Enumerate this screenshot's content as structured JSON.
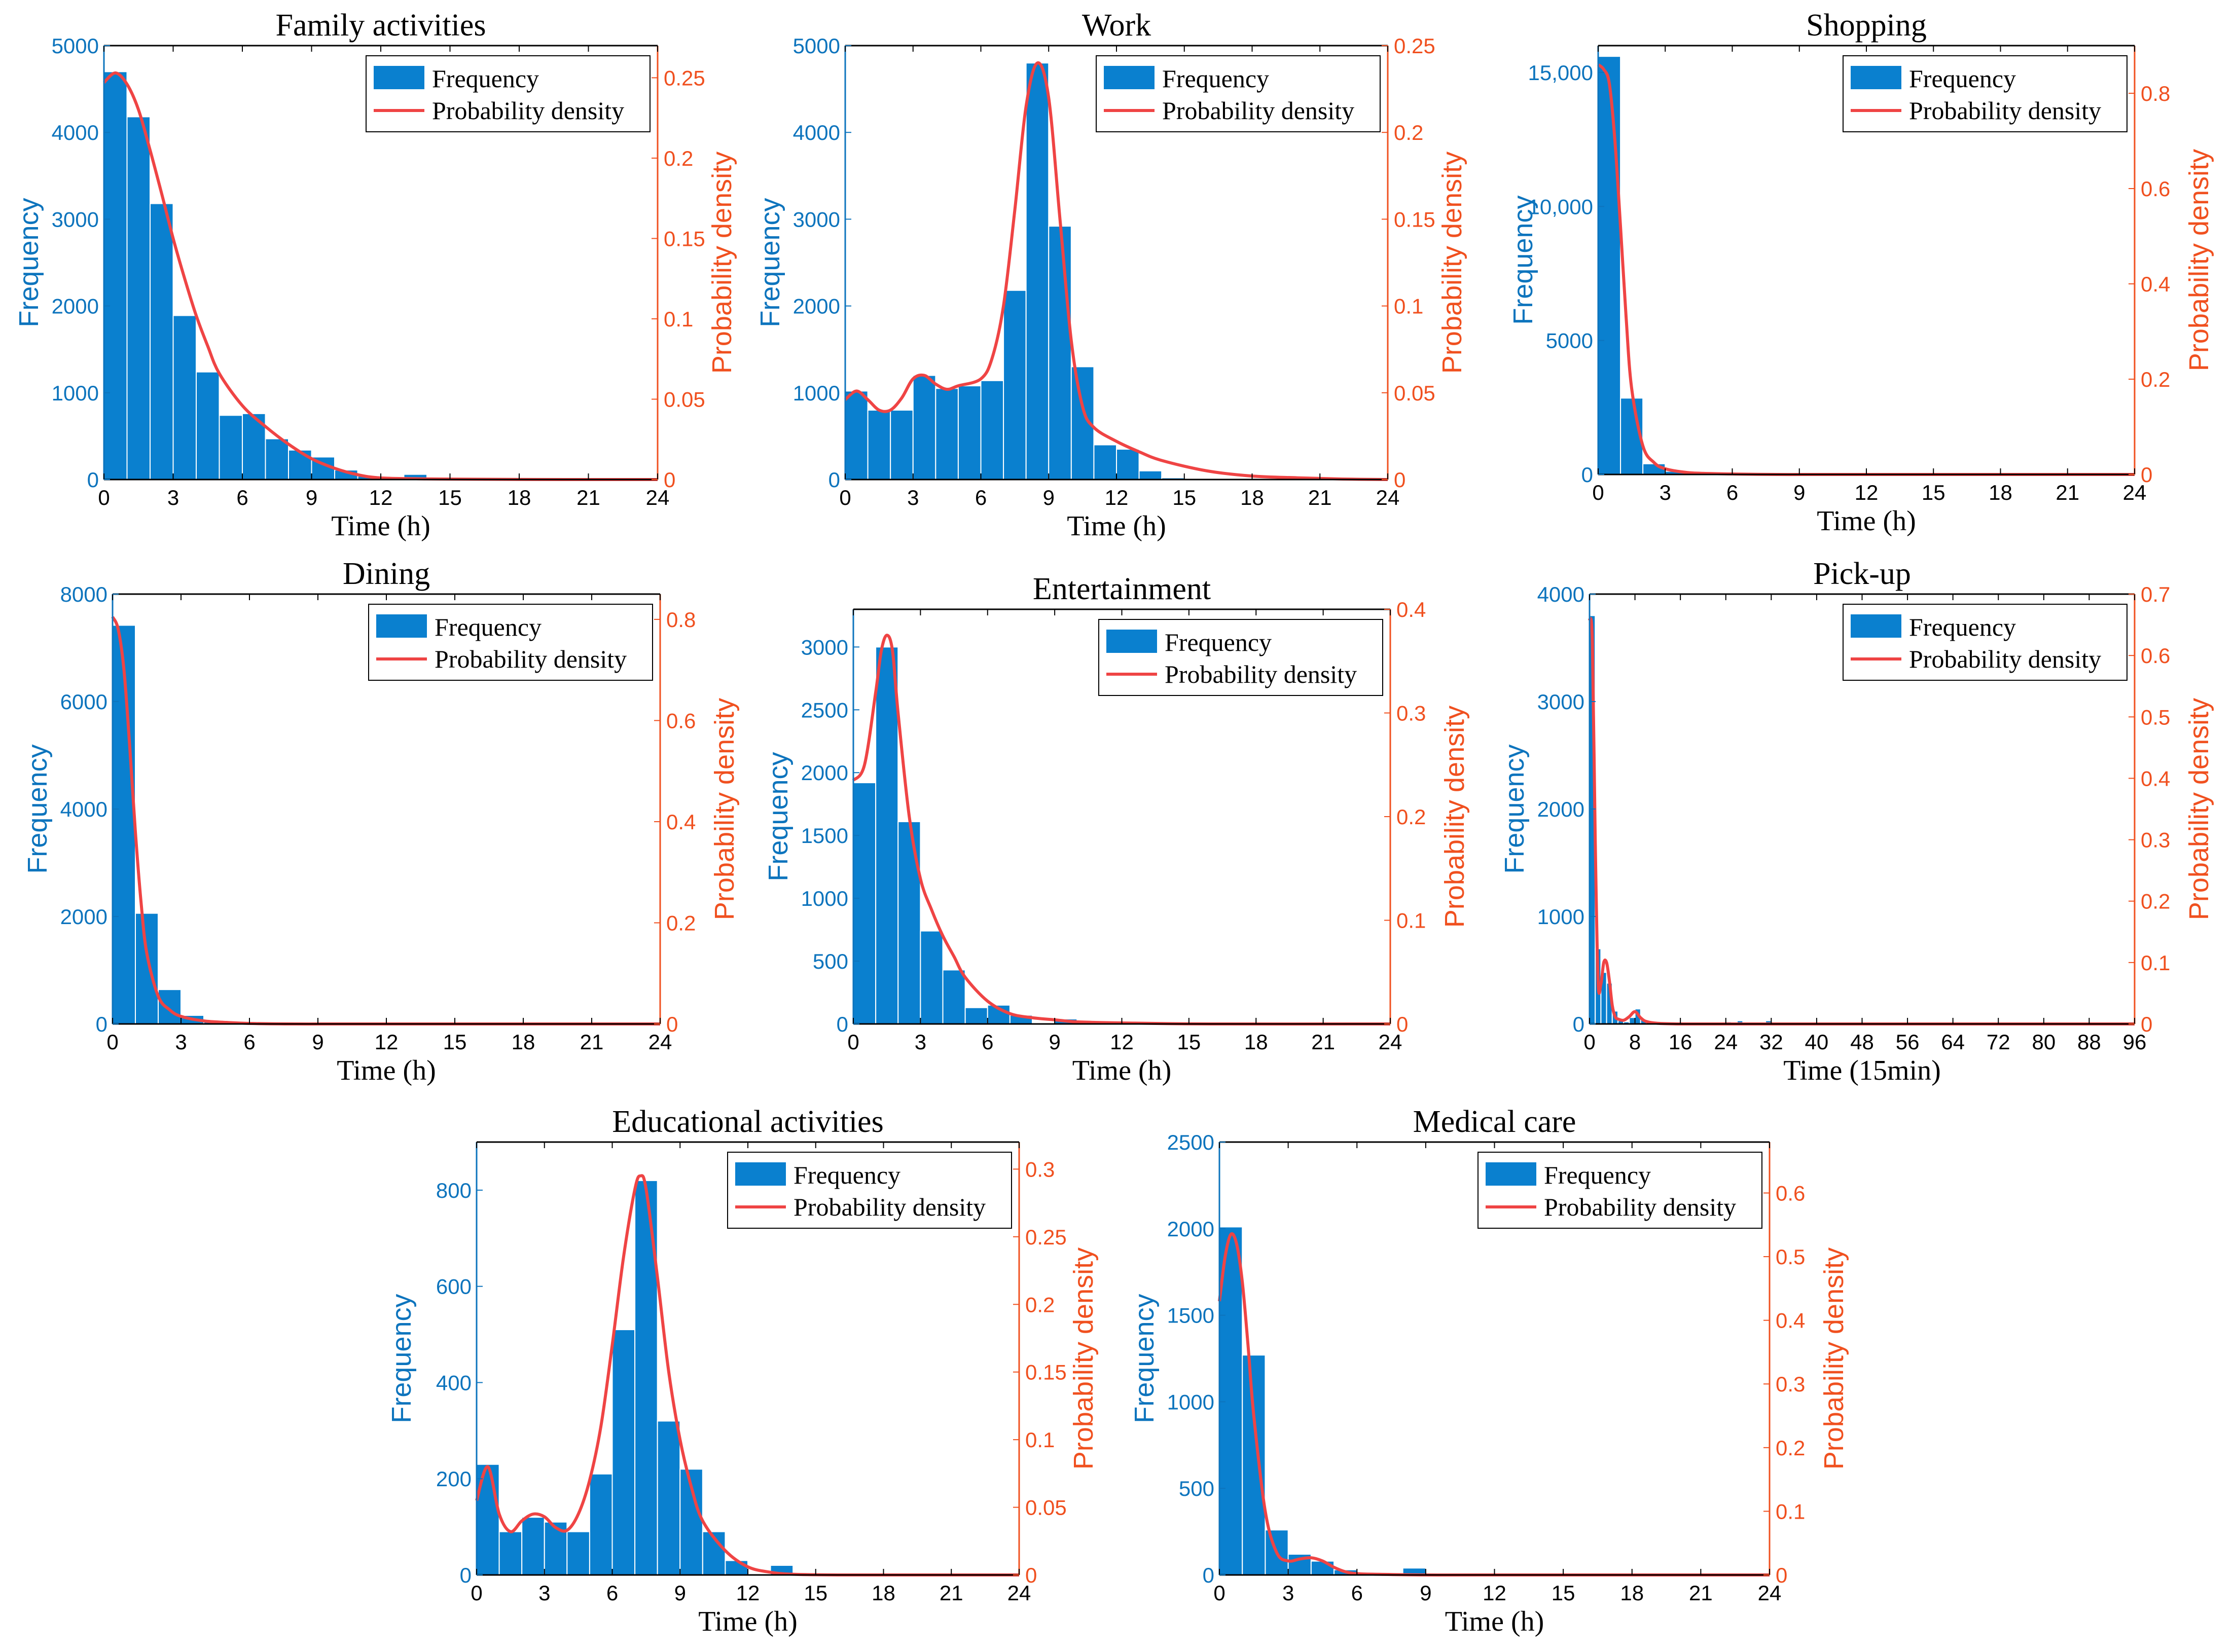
{
  "colors": {
    "bar": "#0a80cf",
    "density": "#ef4444",
    "left_axis": "#0d74bd",
    "right_axis": "#f0501f",
    "axis": "#000000"
  },
  "chart_data": [
    {
      "type": "bar",
      "title": "Family activities",
      "xlabel": "Time (h)",
      "ylabel": "Frequency",
      "ylabel_right": "Probability density",
      "xlim": [
        0,
        24
      ],
      "xticks": [
        "0",
        "3",
        "6",
        "9",
        "12",
        "15",
        "18",
        "21",
        "24"
      ],
      "ylim": [
        0,
        5000
      ],
      "yticks": [
        "0",
        "1000",
        "2000",
        "3000",
        "4000",
        "5000"
      ],
      "ylim_right": [
        0,
        0.27
      ],
      "yticks_right": [
        "0",
        "0.05",
        "0.1",
        "0.15",
        "0.2",
        "0.25"
      ],
      "bin_width": 1,
      "values": [
        4700,
        4180,
        3180,
        1890,
        1240,
        740,
        760,
        470,
        340,
        260,
        110,
        40,
        10,
        60,
        5,
        0,
        0,
        0,
        0,
        0,
        0,
        0,
        0,
        0
      ],
      "density_x": [
        0,
        0.5,
        1,
        1.5,
        2,
        2.5,
        3,
        3.5,
        4,
        4.5,
        5,
        6,
        7,
        8,
        9,
        10,
        11,
        12,
        14,
        16,
        20,
        24
      ],
      "density_y": [
        0.247,
        0.253,
        0.246,
        0.23,
        0.205,
        0.178,
        0.15,
        0.125,
        0.102,
        0.083,
        0.066,
        0.046,
        0.033,
        0.022,
        0.013,
        0.007,
        0.003,
        0.001,
        0.0004,
        0.0002,
        0,
        0
      ],
      "legend": [
        "Frequency",
        "Probability density"
      ]
    },
    {
      "type": "bar",
      "title": "Work",
      "xlabel": "Time  (h)",
      "ylabel": "Frequency",
      "ylabel_right": "Probability density",
      "xlim": [
        0,
        24
      ],
      "xticks": [
        "0",
        "3",
        "6",
        "9",
        "12",
        "15",
        "18",
        "21",
        "24"
      ],
      "ylim": [
        0,
        5000
      ],
      "yticks": [
        "0",
        "1000",
        "2000",
        "3000",
        "4000",
        "5000"
      ],
      "ylim_right": [
        0,
        0.25
      ],
      "yticks_right": [
        "0",
        "0.05",
        "0.1",
        "0.15",
        "0.2",
        "0.25"
      ],
      "bin_width": 1,
      "values": [
        1020,
        800,
        800,
        1200,
        1050,
        1080,
        1140,
        2180,
        4800,
        2920,
        1300,
        400,
        350,
        100,
        20,
        10,
        0,
        0,
        0,
        0,
        0,
        0,
        0,
        0
      ],
      "density_x": [
        0,
        0.5,
        1,
        1.5,
        2,
        2.5,
        3,
        3.5,
        4,
        4.5,
        5,
        6,
        6.5,
        7,
        7.5,
        8,
        8.5,
        9,
        9.5,
        10,
        10.5,
        11,
        12,
        13,
        14,
        16,
        18,
        20,
        22,
        24
      ],
      "density_y": [
        0.046,
        0.051,
        0.046,
        0.04,
        0.04,
        0.047,
        0.058,
        0.06,
        0.055,
        0.052,
        0.054,
        0.058,
        0.07,
        0.1,
        0.155,
        0.215,
        0.24,
        0.22,
        0.15,
        0.08,
        0.042,
        0.03,
        0.022,
        0.016,
        0.011,
        0.005,
        0.002,
        0.001,
        0.0003,
        0
      ],
      "legend": [
        "Frequency",
        "Probability density"
      ]
    },
    {
      "type": "bar",
      "title": "Shopping",
      "xlabel": "Time  (h)",
      "ylabel": "Frequency",
      "ylabel_right": "Probability density",
      "xlim": [
        0,
        24
      ],
      "xticks": [
        "0",
        "3",
        "6",
        "9",
        "12",
        "15",
        "18",
        "21",
        "24"
      ],
      "ylim": [
        0,
        16000
      ],
      "yticks": [
        "0",
        "5000",
        "10,000",
        "15,000"
      ],
      "ylim_right": [
        0,
        0.9
      ],
      "yticks_right": [
        "0",
        "0.2",
        "0.4",
        "0.6",
        "0.8"
      ],
      "bin_width": 1,
      "values": [
        15600,
        2850,
        400,
        120,
        40,
        20,
        10,
        5,
        0,
        0,
        0,
        0,
        0,
        0,
        0,
        0,
        0,
        0,
        0,
        0,
        0,
        0,
        0,
        0
      ],
      "density_x": [
        0,
        0.25,
        0.5,
        0.75,
        1,
        1.25,
        1.5,
        2,
        2.5,
        3,
        4,
        5,
        6,
        8,
        12,
        24
      ],
      "density_y": [
        0.86,
        0.85,
        0.82,
        0.7,
        0.52,
        0.33,
        0.18,
        0.06,
        0.025,
        0.012,
        0.004,
        0.002,
        0.001,
        0,
        0,
        0
      ],
      "legend": [
        "Frequency",
        "Probability density"
      ]
    },
    {
      "type": "bar",
      "title": "Dining",
      "xlabel": "Time  (h)",
      "ylabel": "Frequency",
      "ylabel_right": "Probability density",
      "xlim": [
        0,
        24
      ],
      "xticks": [
        "0",
        "3",
        "6",
        "9",
        "12",
        "15",
        "18",
        "21",
        "24"
      ],
      "ylim": [
        0,
        8000
      ],
      "yticks": [
        "0",
        "2000",
        "4000",
        "6000",
        "8000"
      ],
      "ylim_right": [
        0,
        0.85
      ],
      "yticks_right": [
        "0",
        "0.2",
        "0.4",
        "0.6",
        "0.8"
      ],
      "bin_width": 1,
      "values": [
        7420,
        2060,
        640,
        160,
        60,
        20,
        10,
        5,
        0,
        0,
        0,
        0,
        0,
        0,
        0,
        0,
        0,
        0,
        0,
        0,
        0,
        0,
        0,
        0
      ],
      "density_x": [
        0,
        0.25,
        0.5,
        0.75,
        1,
        1.25,
        1.5,
        2,
        2.5,
        3,
        4,
        5,
        6,
        8,
        12,
        24
      ],
      "density_y": [
        0.805,
        0.78,
        0.7,
        0.55,
        0.38,
        0.24,
        0.14,
        0.055,
        0.028,
        0.015,
        0.006,
        0.003,
        0.001,
        0,
        0,
        0
      ],
      "legend": [
        "Frequency",
        "Probability density"
      ]
    },
    {
      "type": "bar",
      "title": "Entertainment",
      "xlabel": "Time  (h)",
      "ylabel": "Frequency",
      "ylabel_right": "Probability density",
      "xlim": [
        0,
        24
      ],
      "xticks": [
        "0",
        "3",
        "6",
        "9",
        "12",
        "15",
        "18",
        "21",
        "24"
      ],
      "ylim": [
        0,
        3300
      ],
      "yticks": [
        "0",
        "500",
        "1000",
        "1500",
        "2000",
        "2500",
        "3000"
      ],
      "ylim_right": [
        0,
        0.4
      ],
      "yticks_right": [
        "0",
        "0.1",
        "0.2",
        "0.3",
        "0.4"
      ],
      "bin_width": 1,
      "values": [
        1920,
        3000,
        1610,
        740,
        430,
        130,
        150,
        70,
        10,
        40,
        5,
        0,
        0,
        0,
        0,
        0,
        0,
        0,
        0,
        0,
        0,
        0,
        0,
        0
      ],
      "density_x": [
        0,
        0.5,
        1,
        1.25,
        1.5,
        1.75,
        2,
        2.5,
        3,
        3.5,
        4,
        4.5,
        5,
        6,
        7,
        8,
        9,
        10,
        12,
        16,
        24
      ],
      "density_y": [
        0.235,
        0.25,
        0.32,
        0.36,
        0.375,
        0.36,
        0.3,
        0.2,
        0.14,
        0.11,
        0.085,
        0.065,
        0.045,
        0.022,
        0.01,
        0.006,
        0.004,
        0.002,
        0.001,
        0,
        0
      ],
      "legend": [
        "Frequency",
        "Probability density"
      ]
    },
    {
      "type": "bar",
      "title": "Pick-up",
      "xlabel": "Time  (15min)",
      "ylabel": "Frequency",
      "ylabel_right": "Probability density",
      "xlim": [
        0,
        96
      ],
      "xticks": [
        "0",
        "8",
        "16",
        "24",
        "32",
        "40",
        "48",
        "56",
        "64",
        "72",
        "80",
        "88",
        "96"
      ],
      "ylim": [
        0,
        4000
      ],
      "yticks": [
        "0",
        "1000",
        "2000",
        "3000",
        "4000"
      ],
      "ylim_right": [
        0,
        0.7
      ],
      "yticks_right": [
        "0",
        "0.1",
        "0.2",
        "0.3",
        "0.4",
        "0.5",
        "0.6",
        "0.7"
      ],
      "bin_width": 1,
      "values": [
        3800,
        700,
        480,
        380,
        120,
        30,
        20,
        60,
        140,
        40,
        20,
        10,
        20,
        0,
        0,
        0,
        10,
        0,
        0,
        0,
        0,
        0,
        0,
        0,
        20,
        0,
        30,
        0,
        0,
        10,
        0,
        30
      ],
      "density_x": [
        0,
        0.5,
        1,
        1.5,
        2,
        2.5,
        3,
        3.5,
        4,
        4.5,
        5,
        6,
        7,
        8,
        9,
        10,
        12,
        16,
        24,
        32,
        96
      ],
      "density_y": [
        0.66,
        0.62,
        0.3,
        0.07,
        0.065,
        0.1,
        0.1,
        0.07,
        0.03,
        0.012,
        0.008,
        0.006,
        0.012,
        0.02,
        0.01,
        0.004,
        0.001,
        0,
        0,
        0,
        0
      ],
      "legend": [
        "Frequency",
        "Probability density"
      ]
    },
    {
      "type": "bar",
      "title": "Educational activities",
      "xlabel": "Time  (h)",
      "ylabel": "Frequency",
      "ylabel_right": "Probability density",
      "xlim": [
        0,
        24
      ],
      "xticks": [
        "0",
        "3",
        "6",
        "9",
        "12",
        "15",
        "18",
        "21",
        "24"
      ],
      "ylim": [
        0,
        900
      ],
      "yticks": [
        "0",
        "200",
        "400",
        "600",
        "800"
      ],
      "ylim_right": [
        0,
        0.32
      ],
      "yticks_right": [
        "0",
        "0.05",
        "0.1",
        "0.15",
        "0.2",
        "0.25",
        "0.3"
      ],
      "bin_width": 1,
      "values": [
        230,
        90,
        120,
        110,
        90,
        210,
        510,
        820,
        320,
        220,
        90,
        30,
        0,
        20,
        0,
        0,
        0,
        0,
        0,
        0,
        0,
        0,
        0,
        0
      ],
      "density_x": [
        0,
        0.5,
        1,
        1.5,
        2,
        2.5,
        3,
        3.5,
        4,
        4.5,
        5,
        5.5,
        6,
        6.5,
        7,
        7.25,
        7.5,
        8,
        8.5,
        9,
        9.5,
        10,
        11,
        12,
        13,
        14,
        16,
        20,
        24
      ],
      "density_y": [
        0.055,
        0.08,
        0.045,
        0.032,
        0.04,
        0.045,
        0.043,
        0.035,
        0.033,
        0.045,
        0.07,
        0.11,
        0.17,
        0.235,
        0.285,
        0.295,
        0.285,
        0.22,
        0.15,
        0.1,
        0.065,
        0.04,
        0.018,
        0.006,
        0.002,
        0.0005,
        0,
        0,
        0
      ],
      "legend": [
        "Frequency",
        "Probability density"
      ]
    },
    {
      "type": "bar",
      "title": "Medical care",
      "xlabel": "Time (h)",
      "ylabel": "Frequency",
      "ylabel_right": "Probability density",
      "xlim": [
        0,
        24
      ],
      "xticks": [
        "0",
        "3",
        "6",
        "9",
        "12",
        "15",
        "18",
        "21",
        "24"
      ],
      "ylim": [
        0,
        2500
      ],
      "yticks": [
        "0",
        "500",
        "1000",
        "1500",
        "2000",
        "2500"
      ],
      "ylim_right": [
        0,
        0.68
      ],
      "yticks_right": [
        "0",
        "0.1",
        "0.2",
        "0.3",
        "0.4",
        "0.5",
        "0.6"
      ],
      "bin_width": 1,
      "values": [
        2010,
        1270,
        260,
        120,
        80,
        30,
        10,
        0,
        40,
        0,
        0,
        0,
        0,
        0,
        0,
        0,
        0,
        0,
        0,
        0,
        0,
        0,
        0,
        0
      ],
      "density_x": [
        0,
        0.25,
        0.5,
        0.75,
        1,
        1.25,
        1.5,
        2,
        2.5,
        3,
        3.5,
        4,
        4.5,
        5,
        5.5,
        6,
        7,
        9,
        12,
        24
      ],
      "density_y": [
        0.43,
        0.5,
        0.535,
        0.52,
        0.46,
        0.36,
        0.25,
        0.1,
        0.035,
        0.022,
        0.025,
        0.027,
        0.022,
        0.012,
        0.005,
        0.002,
        0.001,
        0,
        0,
        0
      ],
      "legend": [
        "Frequency",
        "Probability density"
      ]
    }
  ]
}
